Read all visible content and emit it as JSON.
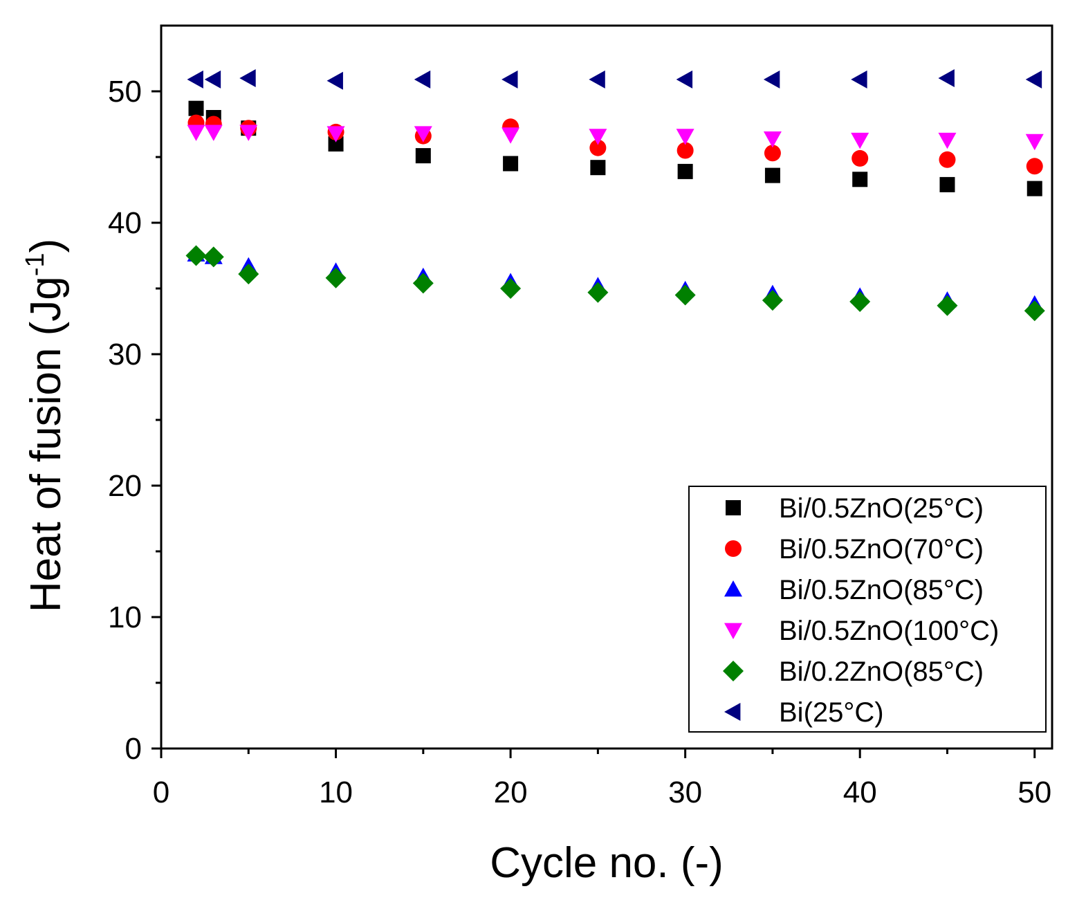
{
  "chart_data": {
    "type": "scatter",
    "xlabel": "Cycle no. (-)",
    "ylabel_main": "Heat of fusion (Jg",
    "ylabel_sup": "-1",
    "ylabel_close": ")",
    "xlim": [
      0,
      51
    ],
    "ylim": [
      0,
      55
    ],
    "x_ticks": [
      0,
      10,
      20,
      30,
      40,
      50
    ],
    "x_tick_labels": [
      "0",
      "10",
      "20",
      "30",
      "40",
      "50"
    ],
    "y_ticks": [
      0,
      10,
      20,
      30,
      40,
      50
    ],
    "y_tick_labels": [
      "0",
      "10",
      "20",
      "30",
      "40",
      "50"
    ],
    "grid": false,
    "legend_position": "bottom-right",
    "x": [
      2,
      3,
      5,
      10,
      15,
      20,
      25,
      30,
      35,
      40,
      45,
      50
    ],
    "series": [
      {
        "name": "Bi/0.5ZnO(25°C)",
        "marker": "square",
        "color": "#000000",
        "values": [
          48.7,
          48.0,
          47.2,
          46.0,
          45.1,
          44.5,
          44.2,
          43.9,
          43.6,
          43.3,
          42.9,
          42.6
        ]
      },
      {
        "name": "Bi/0.5ZnO(70°C)",
        "marker": "circle",
        "color": "#ff0000",
        "values": [
          47.6,
          47.5,
          47.2,
          46.9,
          46.6,
          47.3,
          45.7,
          45.5,
          45.3,
          44.9,
          44.8,
          44.3
        ]
      },
      {
        "name": "Bi/0.5ZnO(85°C)",
        "marker": "triangle-up",
        "color": "#0000ff",
        "values": [
          37.6,
          37.4,
          36.7,
          36.3,
          35.9,
          35.5,
          35.2,
          34.9,
          34.6,
          34.4,
          34.1,
          33.8
        ]
      },
      {
        "name": "Bi/0.5ZnO(100°C)",
        "marker": "triangle-down",
        "color": "#ff00ff",
        "values": [
          46.9,
          46.9,
          46.9,
          46.8,
          46.8,
          46.7,
          46.6,
          46.6,
          46.4,
          46.3,
          46.3,
          46.2
        ]
      },
      {
        "name": "Bi/0.2ZnO(85°C)",
        "marker": "diamond",
        "color": "#008000",
        "values": [
          37.5,
          37.4,
          36.1,
          35.8,
          35.4,
          35.0,
          34.7,
          34.5,
          34.1,
          34.0,
          33.7,
          33.3
        ]
      },
      {
        "name": "Bi(25°C)",
        "marker": "triangle-left",
        "color": "#00007f",
        "values": [
          50.9,
          50.9,
          51.0,
          50.8,
          50.9,
          50.9,
          50.9,
          50.9,
          50.9,
          50.9,
          51.0,
          50.9
        ]
      }
    ]
  }
}
